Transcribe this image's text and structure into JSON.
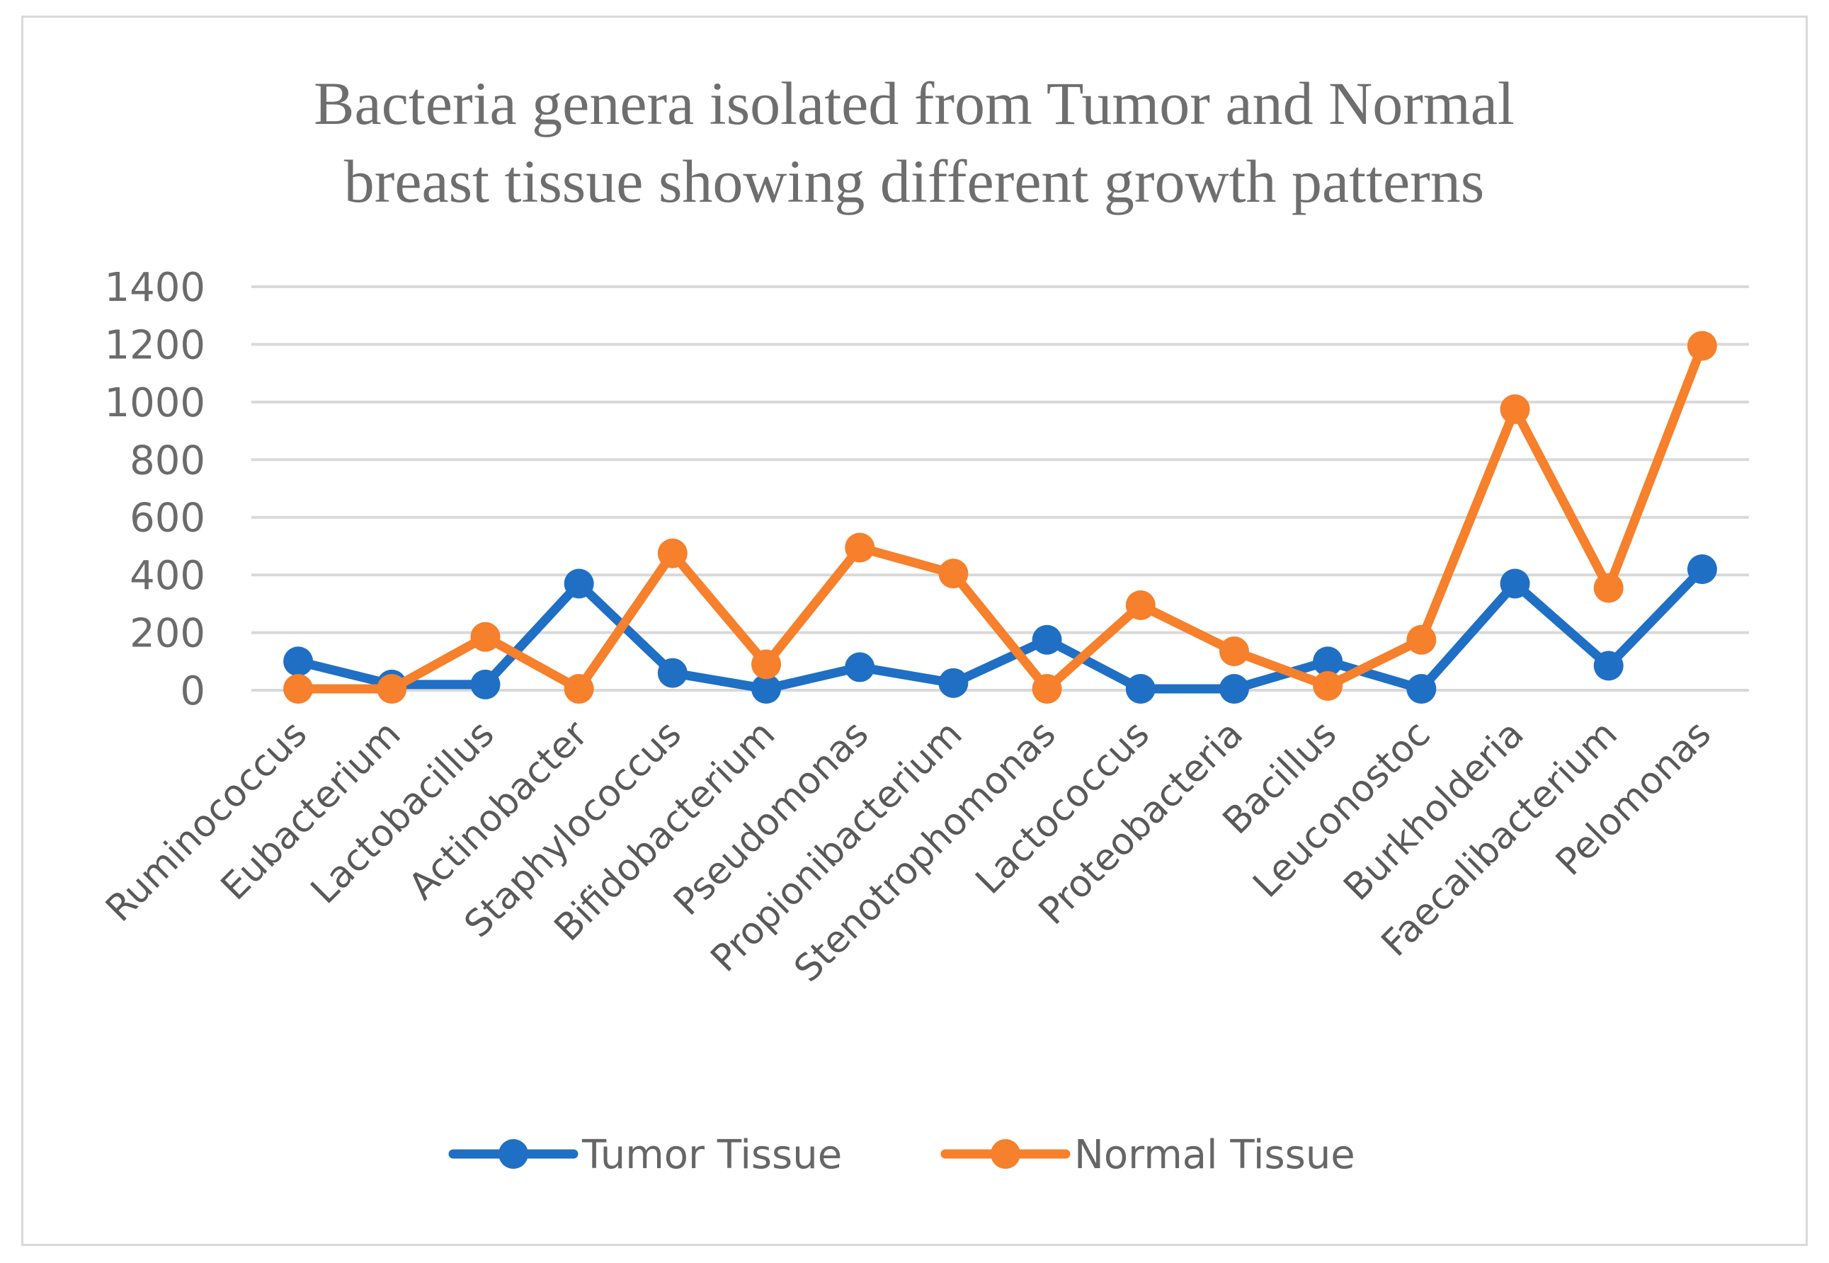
{
  "chart_data": {
    "type": "line",
    "title": "Bacteria genera isolated from Tumor and Normal breast tissue showing different growth patterns",
    "title_lines": [
      "Bacteria genera isolated from Tumor and Normal",
      "breast tissue showing different growth patterns"
    ],
    "xlabel": "",
    "ylabel": "",
    "ylim": [
      0,
      1400
    ],
    "yticks": [
      0,
      200,
      400,
      600,
      800,
      1000,
      1200,
      1400
    ],
    "grid": true,
    "legend_position": "bottom",
    "categories": [
      "Ruminococcus",
      "Eubacterium",
      "Lactobacillus",
      "Actinobacter",
      "Staphylococcus",
      "Bifidobacterium",
      "Pseudomonas",
      "Propionibacterium",
      "Stenotrophomonas",
      "Lactococcus",
      "Proteobacteria",
      "Bacillus",
      "Leuconostoc",
      "Burkholderia",
      "Faecalibacterium",
      "Pelomonas"
    ],
    "series": [
      {
        "name": "Tumor Tissue",
        "color": "#1f6fc5",
        "values": [
          100,
          20,
          20,
          370,
          60,
          5,
          80,
          25,
          175,
          5,
          5,
          100,
          5,
          370,
          85,
          420
        ]
      },
      {
        "name": "Normal Tissue",
        "color": "#f6802b",
        "values": [
          5,
          5,
          185,
          5,
          475,
          90,
          495,
          405,
          5,
          295,
          135,
          15,
          175,
          975,
          355,
          1195
        ]
      }
    ]
  }
}
